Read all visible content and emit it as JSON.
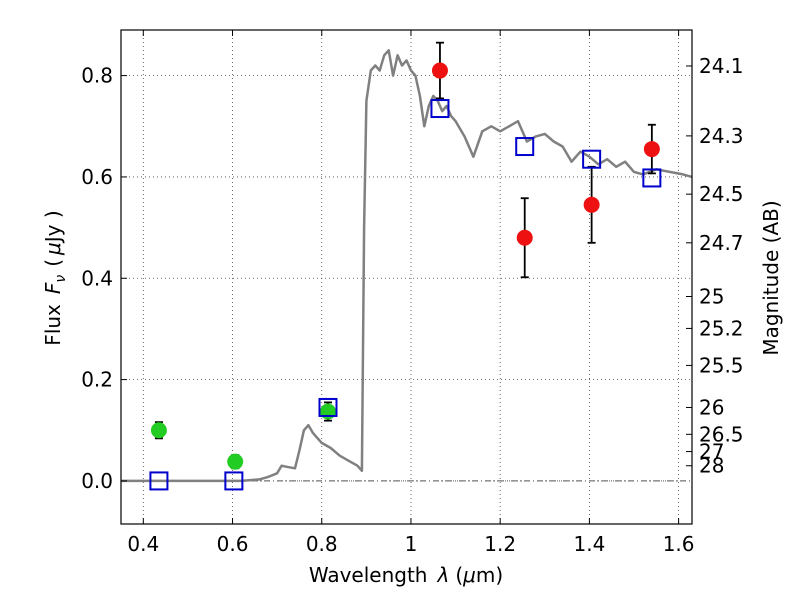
{
  "chart_data": {
    "type": "scatter",
    "xlabel_text": "Wavelength",
    "xlabel_symbol": "λ",
    "xlabel_unit_open": "(",
    "xlabel_unit_mu": "μ",
    "xlabel_unit_rest": "m)",
    "ylabel_text": "Flux",
    "ylabel_symbol": "F",
    "ylabel_subscript": "ν",
    "ylabel_unit_open": "(",
    "ylabel_unit_mu": "μ",
    "ylabel_unit_rest": "Jy )",
    "y2label": "Magnitude (AB)",
    "xlim": [
      0.35,
      1.63
    ],
    "ylim": [
      -0.085,
      0.89
    ],
    "grid": true,
    "x_ticks": [
      {
        "value": 0.4,
        "label": "0.4"
      },
      {
        "value": 0.6,
        "label": "0.6"
      },
      {
        "value": 0.8,
        "label": "0.8"
      },
      {
        "value": 1.0,
        "label": "1"
      },
      {
        "value": 1.2,
        "label": "1.2"
      },
      {
        "value": 1.4,
        "label": "1.4"
      },
      {
        "value": 1.6,
        "label": "1.6"
      }
    ],
    "y_ticks": [
      {
        "value": 0.0,
        "label": "0.0"
      },
      {
        "value": 0.2,
        "label": "0.2"
      },
      {
        "value": 0.4,
        "label": "0.4"
      },
      {
        "value": 0.6,
        "label": "0.6"
      },
      {
        "value": 0.8,
        "label": "0.8"
      }
    ],
    "mag_ticks": [
      {
        "value": 0.819,
        "label": "24.1"
      },
      {
        "value": 0.681,
        "label": "24.3"
      },
      {
        "value": 0.566,
        "label": "24.5"
      },
      {
        "value": 0.47,
        "label": "24.7"
      },
      {
        "value": 0.364,
        "label": "25"
      },
      {
        "value": 0.301,
        "label": "25.2"
      },
      {
        "value": 0.228,
        "label": "25.5"
      },
      {
        "value": 0.145,
        "label": "26"
      },
      {
        "value": 0.092,
        "label": "26.5"
      },
      {
        "value": 0.058,
        "label": "27"
      },
      {
        "value": 0.03,
        "label": "28"
      }
    ],
    "series": [
      {
        "name": "model SED",
        "kind": "line",
        "color": "#808080",
        "points": [
          [
            0.35,
            0.0
          ],
          [
            0.62,
            0.0
          ],
          [
            0.66,
            0.003
          ],
          [
            0.68,
            0.008
          ],
          [
            0.7,
            0.015
          ],
          [
            0.71,
            0.03
          ],
          [
            0.72,
            0.028
          ],
          [
            0.74,
            0.025
          ],
          [
            0.75,
            0.06
          ],
          [
            0.76,
            0.1
          ],
          [
            0.77,
            0.11
          ],
          [
            0.78,
            0.095
          ],
          [
            0.79,
            0.085
          ],
          [
            0.8,
            0.075
          ],
          [
            0.82,
            0.065
          ],
          [
            0.84,
            0.05
          ],
          [
            0.86,
            0.04
          ],
          [
            0.88,
            0.03
          ],
          [
            0.89,
            0.02
          ],
          [
            0.895,
            0.5
          ],
          [
            0.9,
            0.75
          ],
          [
            0.91,
            0.81
          ],
          [
            0.92,
            0.82
          ],
          [
            0.93,
            0.81
          ],
          [
            0.94,
            0.84
          ],
          [
            0.95,
            0.85
          ],
          [
            0.96,
            0.8
          ],
          [
            0.97,
            0.84
          ],
          [
            0.98,
            0.82
          ],
          [
            0.99,
            0.83
          ],
          [
            1.0,
            0.81
          ],
          [
            1.01,
            0.8
          ],
          [
            1.02,
            0.76
          ],
          [
            1.03,
            0.7
          ],
          [
            1.04,
            0.74
          ],
          [
            1.05,
            0.76
          ],
          [
            1.06,
            0.75
          ],
          [
            1.07,
            0.73
          ],
          [
            1.08,
            0.74
          ],
          [
            1.09,
            0.72
          ],
          [
            1.1,
            0.71
          ],
          [
            1.12,
            0.68
          ],
          [
            1.14,
            0.64
          ],
          [
            1.16,
            0.69
          ],
          [
            1.18,
            0.7
          ],
          [
            1.2,
            0.69
          ],
          [
            1.22,
            0.7
          ],
          [
            1.24,
            0.71
          ],
          [
            1.26,
            0.67
          ],
          [
            1.28,
            0.68
          ],
          [
            1.3,
            0.685
          ],
          [
            1.32,
            0.67
          ],
          [
            1.34,
            0.66
          ],
          [
            1.36,
            0.63
          ],
          [
            1.38,
            0.65
          ],
          [
            1.4,
            0.64
          ],
          [
            1.42,
            0.625
          ],
          [
            1.44,
            0.635
          ],
          [
            1.46,
            0.62
          ],
          [
            1.48,
            0.63
          ],
          [
            1.5,
            0.61
          ],
          [
            1.52,
            0.605
          ],
          [
            1.55,
            0.615
          ],
          [
            1.58,
            0.61
          ],
          [
            1.61,
            0.605
          ],
          [
            1.63,
            0.6
          ]
        ]
      },
      {
        "name": "green photometry",
        "kind": "marker",
        "marker": "circle",
        "color": "#22cc22",
        "points": [
          {
            "x": 0.435,
            "y": 0.1,
            "err": 0.016
          },
          {
            "x": 0.606,
            "y": 0.038,
            "err": 0.013
          },
          {
            "x": 0.814,
            "y": 0.137,
            "err": 0.018
          }
        ]
      },
      {
        "name": "red photometry",
        "kind": "marker",
        "marker": "circle",
        "color": "#ee1111",
        "points": [
          {
            "x": 1.065,
            "y": 0.81,
            "err": 0.055
          },
          {
            "x": 1.255,
            "y": 0.48,
            "err": 0.078
          },
          {
            "x": 1.405,
            "y": 0.545,
            "err": 0.075
          },
          {
            "x": 1.54,
            "y": 0.655,
            "err": 0.048
          }
        ]
      },
      {
        "name": "model photometry",
        "kind": "marker",
        "marker": "open-square",
        "color": "#0000cc",
        "points": [
          {
            "x": 0.435,
            "y": 0.0
          },
          {
            "x": 0.603,
            "y": 0.0
          },
          {
            "x": 0.814,
            "y": 0.145
          },
          {
            "x": 1.065,
            "y": 0.735
          },
          {
            "x": 1.255,
            "y": 0.66
          },
          {
            "x": 1.405,
            "y": 0.635
          },
          {
            "x": 1.54,
            "y": 0.598
          }
        ]
      }
    ]
  }
}
